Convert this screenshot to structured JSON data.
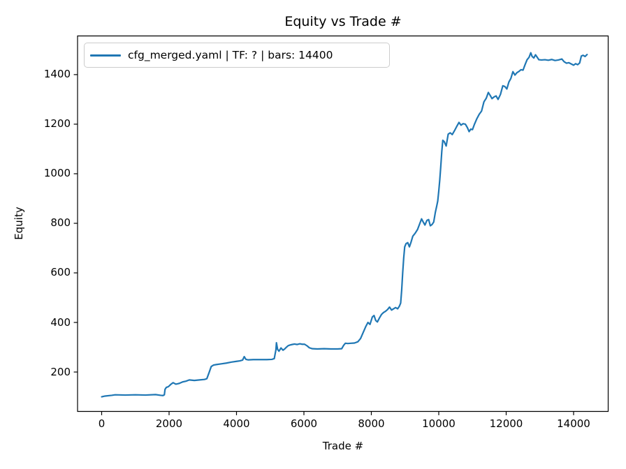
{
  "chart_data": {
    "type": "line",
    "title": "Equity vs Trade #",
    "xlabel": "Trade #",
    "ylabel": "Equity",
    "legend": [
      "cfg_merged.yaml | TF: ? | bars: 14400"
    ],
    "legend_position": "upper left",
    "grid": false,
    "background": "#ffffff",
    "line_color": "#1f77b4",
    "spine_color": "#000000",
    "xlim": [
      -715,
      15026
    ],
    "ylim": [
      41,
      1556
    ],
    "xticks": [
      0,
      2000,
      4000,
      6000,
      8000,
      10000,
      12000,
      14000
    ],
    "yticks": [
      200,
      400,
      600,
      800,
      1000,
      1200,
      1400
    ],
    "series": [
      {
        "name": "cfg_merged.yaml | TF: ? | bars: 14400",
        "x": [
          1,
          100,
          300,
          400,
          700,
          1000,
          1300,
          1600,
          1750,
          1820,
          1860,
          1880,
          1920,
          1980,
          2050,
          2120,
          2200,
          2300,
          2400,
          2500,
          2600,
          2750,
          2900,
          3050,
          3120,
          3180,
          3250,
          3320,
          3400,
          3550,
          3700,
          3850,
          4000,
          4100,
          4180,
          4230,
          4280,
          4350,
          4500,
          4700,
          4900,
          5050,
          5120,
          5170,
          5185,
          5220,
          5260,
          5320,
          5380,
          5430,
          5480,
          5530,
          5590,
          5650,
          5720,
          5800,
          5880,
          5950,
          6020,
          6100,
          6160,
          6250,
          6400,
          6600,
          6800,
          7000,
          7120,
          7180,
          7230,
          7300,
          7400,
          7500,
          7600,
          7680,
          7760,
          7840,
          7900,
          7960,
          8030,
          8080,
          8130,
          8180,
          8240,
          8300,
          8360,
          8420,
          8480,
          8540,
          8600,
          8660,
          8720,
          8780,
          8830,
          8870,
          8900,
          8930,
          8960,
          8990,
          9030,
          9080,
          9130,
          9180,
          9230,
          9300,
          9370,
          9440,
          9490,
          9540,
          9590,
          9650,
          9700,
          9750,
          9800,
          9850,
          9900,
          9940,
          9970,
          10000,
          10030,
          10060,
          10090,
          10120,
          10160,
          10220,
          10280,
          10340,
          10400,
          10460,
          10530,
          10600,
          10660,
          10720,
          10790,
          10850,
          10900,
          10950,
          11000,
          11060,
          11130,
          11200,
          11270,
          11340,
          11410,
          11470,
          11530,
          11580,
          11640,
          11700,
          11760,
          11830,
          11900,
          11960,
          12020,
          12080,
          12140,
          12200,
          12260,
          12320,
          12380,
          12440,
          12500,
          12560,
          12620,
          12680,
          12730,
          12770,
          12820,
          12870,
          12920,
          12970,
          13050,
          13150,
          13250,
          13350,
          13450,
          13550,
          13650,
          13720,
          13790,
          13860,
          13930,
          14000,
          14060,
          14120,
          14180,
          14230,
          14280,
          14340,
          14400
        ],
        "y": [
          100,
          103,
          106,
          108,
          107,
          108,
          107,
          109,
          106,
          105,
          108,
          130,
          138,
          141,
          150,
          157,
          151,
          154,
          160,
          163,
          168,
          166,
          168,
          170,
          173,
          195,
          222,
          228,
          230,
          233,
          236,
          240,
          243,
          245,
          248,
          262,
          251,
          249,
          250,
          250,
          250,
          251,
          254,
          290,
          318,
          291,
          284,
          297,
          288,
          293,
          300,
          306,
          309,
          311,
          313,
          311,
          314,
          312,
          312,
          305,
          298,
          294,
          293,
          294,
          293,
          293,
          294,
          308,
          316,
          315,
          316,
          317,
          322,
          335,
          360,
          385,
          400,
          392,
          422,
          428,
          408,
          402,
          418,
          432,
          440,
          445,
          452,
          462,
          450,
          455,
          460,
          455,
          465,
          478,
          530,
          600,
          660,
          705,
          718,
          722,
          705,
          725,
          748,
          760,
          775,
          800,
          818,
          805,
          793,
          812,
          815,
          790,
          795,
          805,
          845,
          870,
          890,
          930,
          975,
          1030,
          1090,
          1135,
          1130,
          1112,
          1160,
          1165,
          1158,
          1172,
          1190,
          1207,
          1196,
          1202,
          1200,
          1186,
          1170,
          1180,
          1178,
          1200,
          1222,
          1240,
          1253,
          1290,
          1305,
          1328,
          1315,
          1303,
          1310,
          1314,
          1300,
          1320,
          1355,
          1352,
          1342,
          1370,
          1385,
          1412,
          1398,
          1408,
          1413,
          1420,
          1418,
          1440,
          1460,
          1470,
          1488,
          1473,
          1467,
          1480,
          1470,
          1460,
          1459,
          1460,
          1458,
          1461,
          1457,
          1459,
          1463,
          1452,
          1446,
          1448,
          1443,
          1438,
          1444,
          1440,
          1447,
          1475,
          1478,
          1473,
          1481
        ]
      }
    ]
  }
}
